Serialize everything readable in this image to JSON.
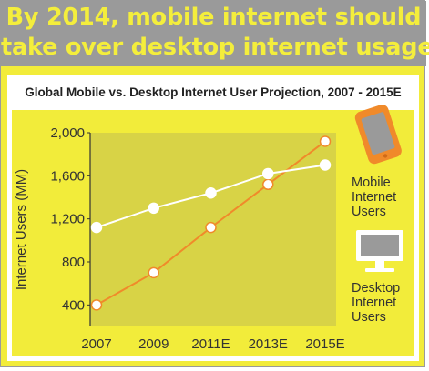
{
  "headline": {
    "line1": "By 2014, mobile internet should",
    "line2": "take over desktop internet usage"
  },
  "colors": {
    "background": "#f2ec3a",
    "banner": "#9a9a9a",
    "headline_text": "#f4ee3c",
    "plot_area": "#d8d346",
    "mobile_series": "#f08a2a",
    "desktop_series": "#ffffff"
  },
  "legend": {
    "mobile": {
      "label": "Mobile\nInternet\nUsers",
      "icon": "smartphone-icon"
    },
    "desktop": {
      "label": "Desktop\nInternet\nUsers",
      "icon": "desktop-monitor-icon"
    }
  },
  "chart_data": {
    "type": "line",
    "title": "Global Mobile vs. Desktop Internet User Projection, 2007 - 2015E",
    "xlabel": "",
    "ylabel": "Internet Users (MM)",
    "categories": [
      "2007",
      "2009",
      "2011E",
      "2013E",
      "2015E"
    ],
    "yticks": [
      "400",
      "800",
      "1,200",
      "1,600",
      "2,000"
    ],
    "ylim": [
      200,
      2000
    ],
    "grid": false,
    "series": [
      {
        "name": "Mobile Internet Users",
        "values": [
          400,
          700,
          1120,
          1520,
          1920
        ]
      },
      {
        "name": "Desktop Internet Users",
        "values": [
          1120,
          1300,
          1440,
          1620,
          1700
        ]
      }
    ]
  }
}
